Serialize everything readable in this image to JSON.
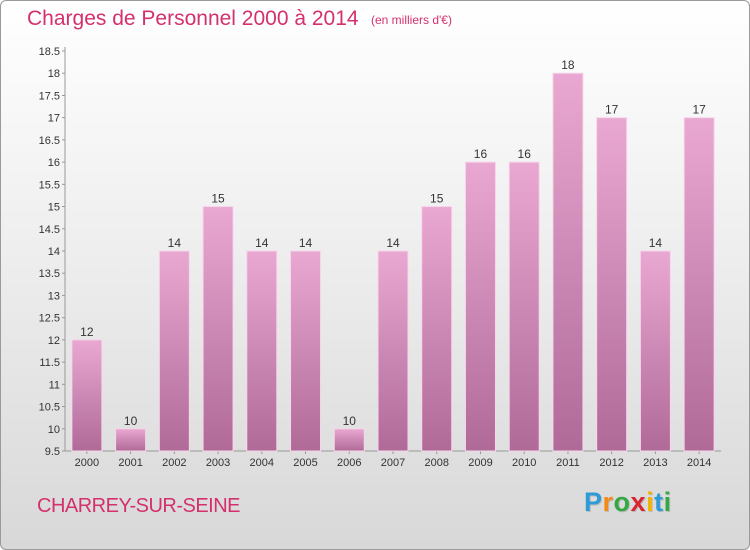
{
  "title": "Charges de Personnel 2000 à 2014",
  "unit_note": "(en milliers d'€)",
  "commune": "CHARREY-SUR-SEINE",
  "logo": {
    "letters": [
      "P",
      "r",
      "o",
      "x",
      "i",
      "t",
      "i"
    ],
    "colors": [
      "#2e9bd6",
      "#f28a1a",
      "#35a843",
      "#d8262e",
      "#f2b400",
      "#2e9bd6",
      "#35a843"
    ]
  },
  "colors": {
    "accent": "#d4306e",
    "bar_top": "#e9a8d2",
    "bar_bottom": "#b06a98",
    "bar_border": "#f6d6ea"
  },
  "chart_data": {
    "type": "bar",
    "title": "Charges de Personnel 2000 à 2014",
    "categories": [
      "2000",
      "2001",
      "2002",
      "2003",
      "2004",
      "2005",
      "2006",
      "2007",
      "2008",
      "2009",
      "2010",
      "2011",
      "2012",
      "2013",
      "2014"
    ],
    "values": [
      12,
      10,
      14,
      15,
      14,
      14,
      10,
      14,
      15,
      16,
      16,
      18,
      17,
      14,
      17
    ],
    "ylim": [
      9.5,
      18.5
    ],
    "yticks": [
      "9.5",
      "10",
      "10.5",
      "11",
      "11.5",
      "12",
      "12.5",
      "13",
      "13.5",
      "14",
      "14.5",
      "15",
      "15.5",
      "16",
      "16.5",
      "17",
      "17.5",
      "18",
      "18.5"
    ],
    "grid": false,
    "legend": "none"
  }
}
